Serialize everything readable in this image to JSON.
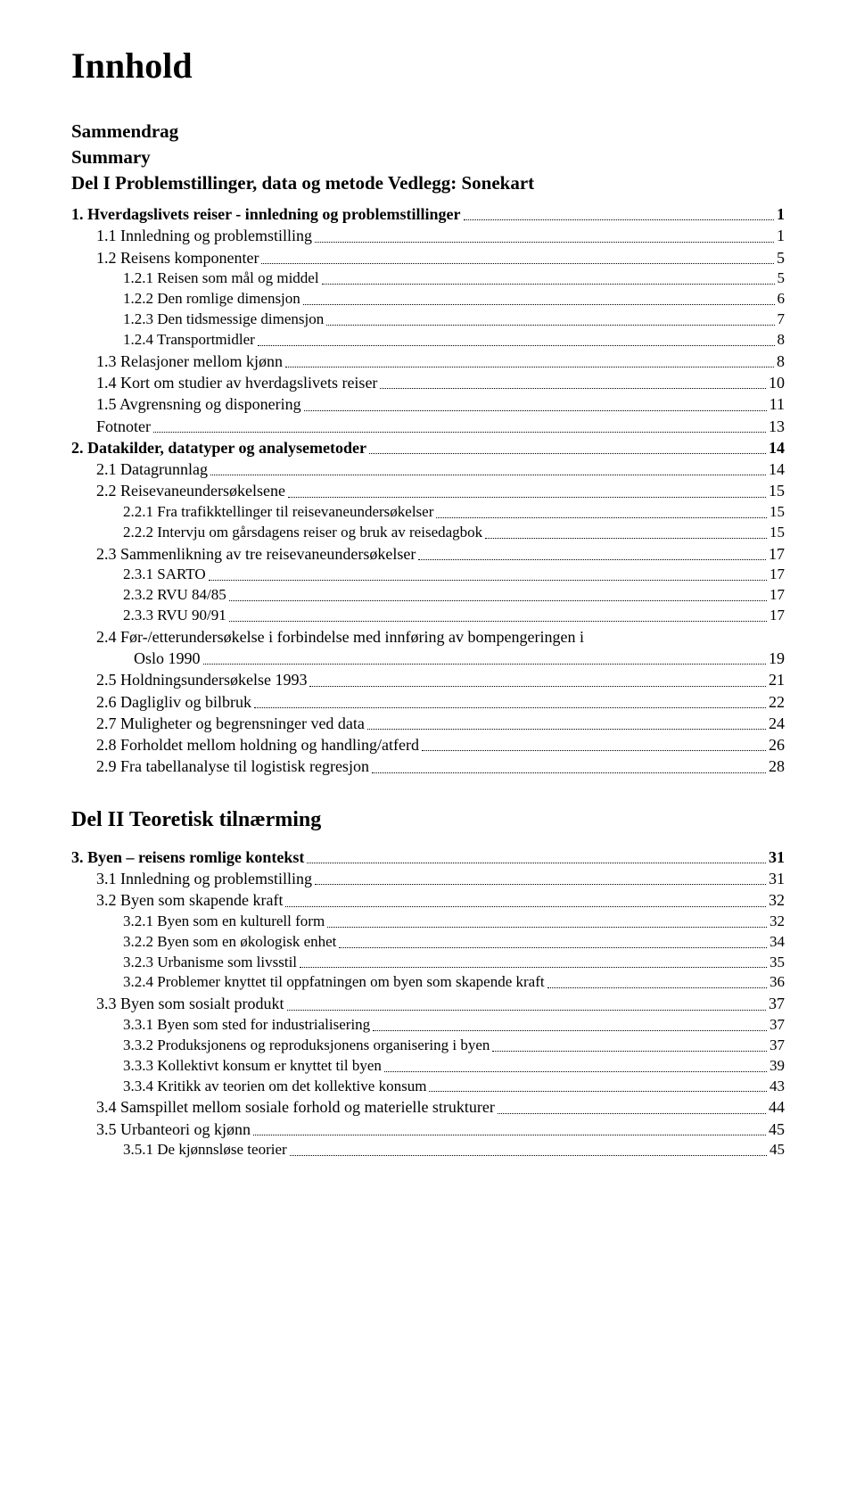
{
  "title": "Innhold",
  "front": {
    "l1": "Sammendrag",
    "l2": "Summary",
    "l3": "Del I Problemstillinger, data og metode Vedlegg: Sonekart"
  },
  "part1": [
    {
      "lvl": 1,
      "label": "1. Hverdagslivets reiser - innledning og problemstillinger",
      "page": "1"
    },
    {
      "lvl": 2,
      "label": "1.1 Innledning og problemstilling",
      "page": "1"
    },
    {
      "lvl": 2,
      "label": "1.2 Reisens komponenter",
      "page": "5"
    },
    {
      "lvl": 3,
      "label": "1.2.1 Reisen som mål og middel",
      "page": "5"
    },
    {
      "lvl": 3,
      "label": "1.2.2 Den romlige dimensjon",
      "page": "6"
    },
    {
      "lvl": 3,
      "label": "1.2.3 Den tidsmessige dimensjon",
      "page": "7"
    },
    {
      "lvl": 3,
      "label": "1.2.4 Transportmidler",
      "page": "8"
    },
    {
      "lvl": 2,
      "label": "1.3 Relasjoner mellom kjønn",
      "page": "8"
    },
    {
      "lvl": 2,
      "label": "1.4 Kort om studier av hverdagslivets reiser",
      "page": "10"
    },
    {
      "lvl": 2,
      "label": "1.5 Avgrensning og disponering",
      "page": "11"
    },
    {
      "lvl": 2,
      "label": "Fotnoter",
      "page": "13"
    },
    {
      "lvl": 1,
      "label": "2. Datakilder, datatyper og analysemetoder",
      "page": "14"
    },
    {
      "lvl": 2,
      "label": "2.1 Datagrunnlag",
      "page": "14"
    },
    {
      "lvl": 2,
      "label": "2.2 Reisevaneundersøkelsene",
      "page": "15"
    },
    {
      "lvl": 3,
      "label": "2.2.1 Fra trafikktellinger til reisevaneundersøkelser",
      "page": "15"
    },
    {
      "lvl": 3,
      "label": "2.2.2 Intervju om gårsdagens reiser og bruk av reisedagbok",
      "page": "15"
    },
    {
      "lvl": 2,
      "label": "2.3 Sammenlikning av tre reisevaneundersøkelser",
      "page": "17"
    },
    {
      "lvl": 3,
      "label": "2.3.1 SARTO",
      "page": "17"
    },
    {
      "lvl": 3,
      "label": "2.3.2 RVU 84/85",
      "page": "17"
    },
    {
      "lvl": 3,
      "label": "2.3.3 RVU 90/91",
      "page": "17"
    },
    {
      "lvl": 2,
      "label": "2.4 Før-/etterundersøkelse i forbindelse med innføring av bompengeringen i",
      "cont": "Oslo 1990",
      "page": "19"
    },
    {
      "lvl": 2,
      "label": "2.5 Holdningsundersøkelse 1993",
      "page": "21"
    },
    {
      "lvl": 2,
      "label": "2.6 Dagligliv og bilbruk",
      "page": "22"
    },
    {
      "lvl": 2,
      "label": "2.7 Muligheter og begrensninger ved data",
      "page": "24"
    },
    {
      "lvl": 2,
      "label": "2.8 Forholdet mellom holdning og handling/atferd",
      "page": "26"
    },
    {
      "lvl": 2,
      "label": "2.9 Fra tabellanalyse til logistisk regresjon",
      "page": "28"
    }
  ],
  "part2_heading": "Del II Teoretisk tilnærming",
  "part2": [
    {
      "lvl": 1,
      "label": "3. Byen – reisens romlige kontekst",
      "page": "31"
    },
    {
      "lvl": 2,
      "label": "3.1 Innledning og problemstilling",
      "page": "31"
    },
    {
      "lvl": 2,
      "label": "3.2 Byen som skapende kraft",
      "page": "32"
    },
    {
      "lvl": 3,
      "label": "3.2.1 Byen som en kulturell form",
      "page": "32"
    },
    {
      "lvl": 3,
      "label": "3.2.2 Byen som en økologisk enhet",
      "page": "34"
    },
    {
      "lvl": 3,
      "label": "3.2.3 Urbanisme som livsstil",
      "page": "35"
    },
    {
      "lvl": 3,
      "label": "3.2.4 Problemer knyttet til oppfatningen om byen som skapende kraft",
      "page": "36"
    },
    {
      "lvl": 2,
      "label": "3.3 Byen som sosialt produkt",
      "page": "37"
    },
    {
      "lvl": 3,
      "label": "3.3.1 Byen som sted for industrialisering",
      "page": "37"
    },
    {
      "lvl": 3,
      "label": "3.3.2 Produksjonens og reproduksjonens organisering i byen",
      "page": "37"
    },
    {
      "lvl": 3,
      "label": "3.3.3 Kollektivt konsum er knyttet til byen",
      "page": "39"
    },
    {
      "lvl": 3,
      "label": "3.3.4 Kritikk av teorien om det kollektive konsum",
      "page": "43"
    },
    {
      "lvl": 2,
      "label": "3.4 Samspillet mellom sosiale forhold og materielle strukturer",
      "page": "44"
    },
    {
      "lvl": 2,
      "label": "3.5 Urbanteori og kjønn",
      "page": "45"
    },
    {
      "lvl": 3,
      "label": "3.5.1 De kjønnsløse teorier",
      "page": "45"
    }
  ]
}
